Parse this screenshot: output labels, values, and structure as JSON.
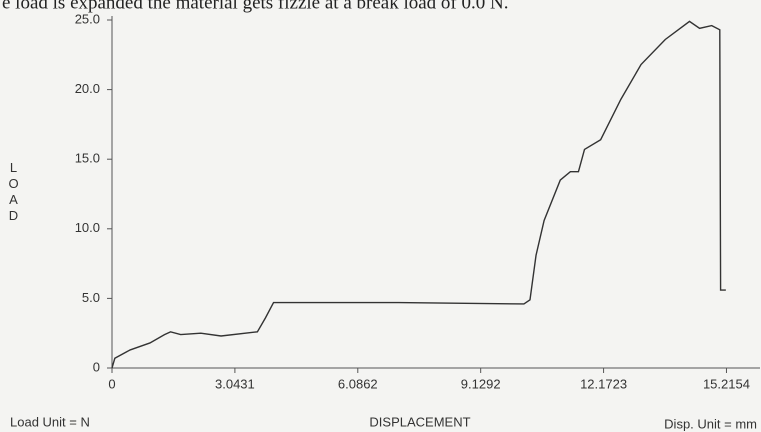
{
  "note_text": "e load is expanded the material gets fizzle at a break load of 0.0 N.",
  "chart_data": {
    "type": "line",
    "y_label": "LOAD",
    "x_label": "DISPLACEMENT",
    "load_unit": "Load Unit = N",
    "disp_unit": "Disp. Unit = mm",
    "x": [
      0,
      0.07,
      0.45,
      0.94,
      1.3,
      1.45,
      1.7,
      2.2,
      2.7,
      3.6,
      3.8,
      4.0,
      4.65,
      7.1,
      10.2,
      10.35,
      10.5,
      10.7,
      11.1,
      11.35,
      11.55,
      11.7,
      12.1,
      12.6,
      13.1,
      13.7,
      14.3,
      14.55,
      14.85,
      15.05,
      15.07,
      15.2
    ],
    "series": [
      {
        "color": "#333333",
        "values": [
          0,
          0.7,
          1.3,
          1.8,
          2.4,
          2.6,
          2.4,
          2.5,
          2.3,
          2.6,
          3.6,
          4.7,
          4.7,
          4.7,
          4.6,
          4.9,
          8.1,
          10.6,
          13.5,
          14.1,
          14.1,
          15.7,
          16.4,
          19.3,
          21.8,
          23.6,
          24.9,
          24.4,
          24.6,
          24.3,
          5.6,
          5.6
        ]
      }
    ],
    "xlim": [
      0,
      15.6
    ],
    "ylim": [
      0,
      25
    ],
    "xticks": [
      0,
      3.0431,
      6.0862,
      9.1292,
      12.1723,
      15.2154
    ],
    "yticks": [
      0,
      {
        "value": 5,
        "label": "5.0"
      },
      {
        "value": 10,
        "label": "10.0"
      },
      {
        "value": 15,
        "label": "15.0"
      },
      {
        "value": 20,
        "label": "20.0"
      },
      {
        "value": 25,
        "label": "25.0"
      }
    ]
  }
}
